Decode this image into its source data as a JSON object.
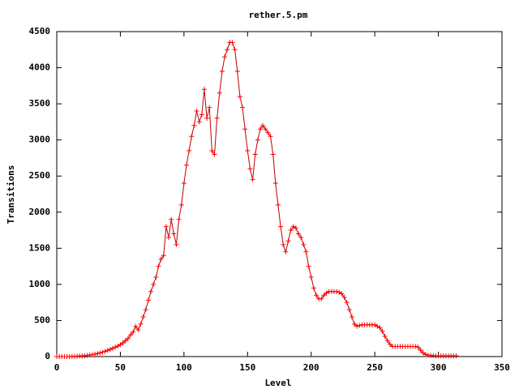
{
  "chart_data": {
    "type": "line",
    "title": "rether.5.pm",
    "x_label": "Level",
    "y_label": "Transitions",
    "x": [
      0,
      2,
      4,
      6,
      8,
      10,
      12,
      14,
      16,
      18,
      20,
      22,
      24,
      26,
      28,
      30,
      32,
      34,
      36,
      38,
      40,
      42,
      44,
      46,
      48,
      50,
      52,
      54,
      56,
      58,
      60,
      62,
      64,
      66,
      68,
      70,
      72,
      74,
      76,
      78,
      80,
      82,
      84,
      86,
      88,
      90,
      92,
      94,
      96,
      98,
      100,
      102,
      104,
      106,
      108,
      110,
      112,
      114,
      116,
      118,
      120,
      122,
      124,
      126,
      128,
      130,
      132,
      134,
      136,
      138,
      140,
      142,
      144,
      146,
      148,
      150,
      152,
      154,
      156,
      158,
      160,
      162,
      164,
      166,
      168,
      170,
      172,
      174,
      176,
      178,
      180,
      182,
      184,
      186,
      188,
      190,
      192,
      194,
      196,
      198,
      200,
      202,
      204,
      206,
      208,
      210,
      212,
      214,
      216,
      218,
      220,
      222,
      224,
      226,
      228,
      230,
      232,
      234,
      236,
      238,
      240,
      242,
      244,
      246,
      248,
      250,
      252,
      254,
      256,
      258,
      260,
      262,
      264,
      266,
      268,
      270,
      272,
      274,
      276,
      278,
      280,
      282,
      284,
      286,
      288,
      290,
      292,
      294,
      296,
      298,
      300,
      302,
      304,
      306,
      308,
      310,
      312,
      314
    ],
    "series": [
      {
        "name": "rether.5.pm",
        "color": "#ff0000",
        "line_color": "#c00000",
        "values": [
          0,
          0,
          0,
          0,
          0,
          2,
          3,
          4,
          5,
          8,
          10,
          13,
          17,
          22,
          27,
          33,
          42,
          52,
          62,
          72,
          85,
          100,
          115,
          130,
          145,
          165,
          190,
          220,
          250,
          300,
          340,
          420,
          370,
          450,
          550,
          650,
          780,
          900,
          1000,
          1100,
          1250,
          1350,
          1400,
          1800,
          1650,
          1900,
          1700,
          1550,
          1900,
          2100,
          2400,
          2650,
          2850,
          3050,
          3200,
          3400,
          3250,
          3350,
          3700,
          3300,
          3450,
          2850,
          2800,
          3300,
          3650,
          3950,
          4150,
          4250,
          4350,
          4350,
          4250,
          3950,
          3600,
          3450,
          3150,
          2850,
          2600,
          2450,
          2800,
          3000,
          3150,
          3200,
          3150,
          3100,
          3050,
          2800,
          2400,
          2100,
          1800,
          1550,
          1450,
          1600,
          1750,
          1800,
          1780,
          1700,
          1650,
          1550,
          1450,
          1250,
          1100,
          950,
          850,
          800,
          800,
          850,
          880,
          900,
          900,
          900,
          900,
          890,
          870,
          820,
          750,
          650,
          550,
          450,
          420,
          430,
          440,
          440,
          440,
          440,
          440,
          440,
          420,
          400,
          350,
          280,
          220,
          170,
          140,
          140,
          140,
          140,
          140,
          140,
          140,
          140,
          140,
          140,
          130,
          90,
          50,
          30,
          20,
          15,
          12,
          10,
          10,
          10,
          10,
          10,
          10,
          10,
          10,
          10
        ]
      }
    ],
    "xlim": [
      0,
      350
    ],
    "xticks": [
      0,
      50,
      100,
      150,
      200,
      250,
      300,
      350
    ],
    "ylim": [
      0,
      4500
    ],
    "yticks": [
      0,
      500,
      1000,
      1500,
      2000,
      2500,
      3000,
      3500,
      4000,
      4500
    ]
  }
}
